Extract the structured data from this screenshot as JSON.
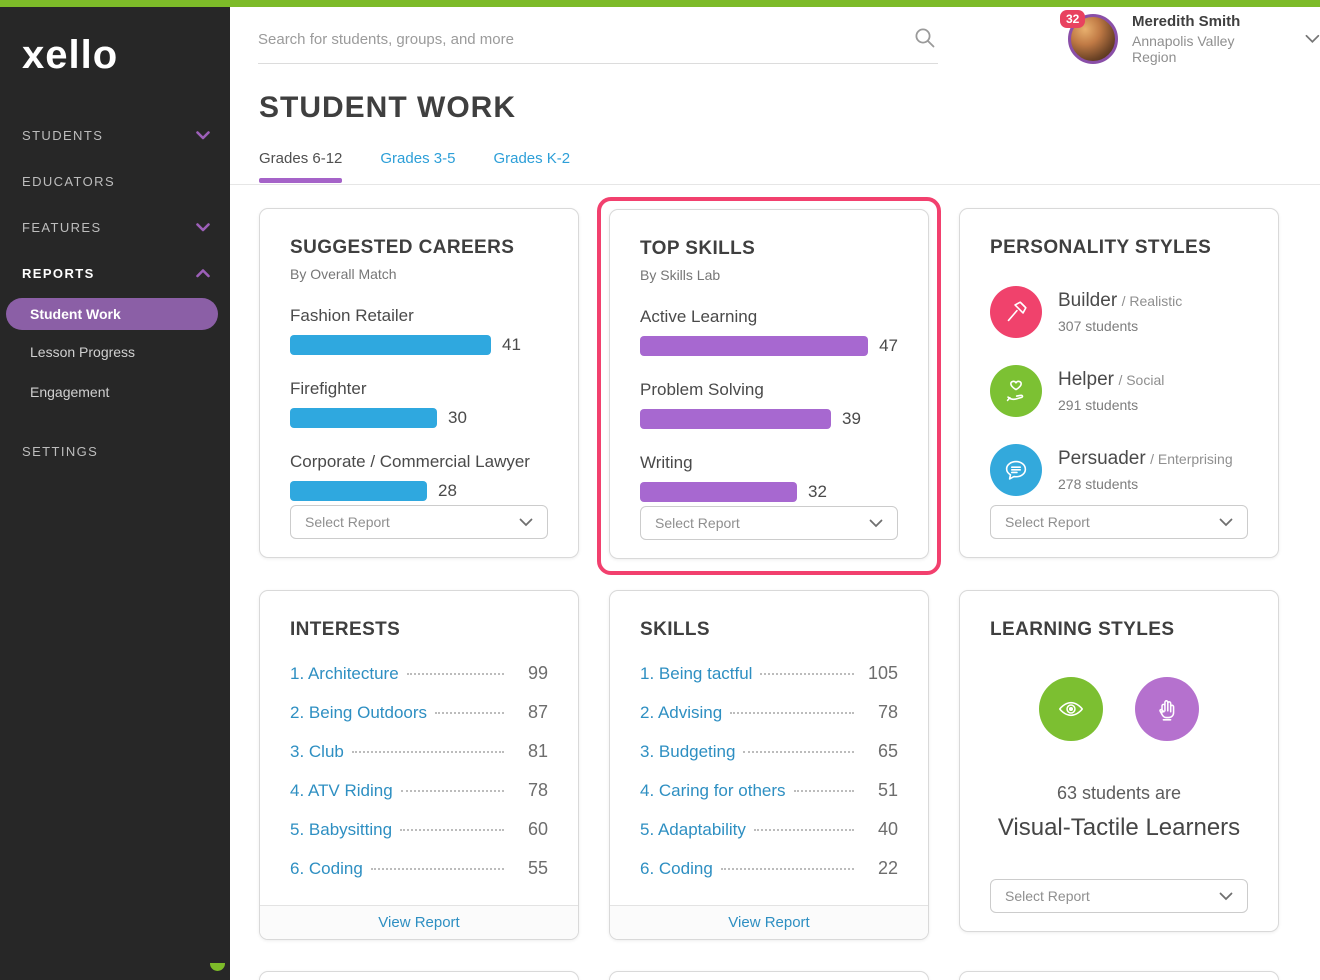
{
  "colors": {
    "accent_green": "#7DBB29",
    "sidebar_bg": "#272727",
    "nav_purple": "#9C5FB8",
    "active_pill": "#8B5FA6",
    "tab_underline": "#A563C8",
    "tab_link_blue": "#2D9FD8",
    "link_blue": "#2E8FC2",
    "bar_blue": "#2FA8DF",
    "bar_purple": "#A768D0",
    "highlight_pink": "#F2406E",
    "badge_red": "#E8425F",
    "builder_pink": "#F0426C",
    "helper_green": "#7CC133",
    "persuader_blue": "#33A9DC",
    "visual_green": "#7CBF31",
    "tactile_purple": "#B571CE"
  },
  "brand": {
    "logo_text": "xello"
  },
  "sidebar": {
    "students_label": "STUDENTS",
    "educators_label": "EDUCATORS",
    "features_label": "FEATURES",
    "reports_label": "REPORTS",
    "reports_items": [
      {
        "label": "Student Work",
        "active": true
      },
      {
        "label": "Lesson Progress"
      },
      {
        "label": "Engagement"
      }
    ],
    "settings_label": "SETTINGS"
  },
  "topbar": {
    "search_placeholder": "Search for students, groups, and more",
    "notification_count": "32",
    "user_name": "Meredith Smith",
    "user_region": "Annapolis Valley Region"
  },
  "page": {
    "title": "STUDENT WORK",
    "tabs": [
      {
        "label": "Grades 6-12",
        "active": true
      },
      {
        "label": "Grades 3-5"
      },
      {
        "label": "Grades K-2"
      }
    ]
  },
  "ui": {
    "select_report": "Select Report",
    "view_report": "View Report"
  },
  "cards": {
    "suggested_careers": {
      "title": "SUGGESTED CAREERS",
      "subtitle": "By Overall Match",
      "items": [
        {
          "label": "Fashion Retailer",
          "value": 41
        },
        {
          "label": "Firefighter",
          "value": 30
        },
        {
          "label": "Corporate / Commercial Lawyer",
          "value": 28
        }
      ]
    },
    "top_skills": {
      "title": "TOP SKILLS",
      "subtitle": "By Skills Lab",
      "items": [
        {
          "label": "Active Learning",
          "value": 47
        },
        {
          "label": "Problem Solving",
          "value": 39
        },
        {
          "label": "Writing",
          "value": 32
        }
      ]
    },
    "personality_styles": {
      "title": "PERSONALITY STYLES",
      "items": [
        {
          "name": "Builder",
          "type": "/ Realistic",
          "students": "307 students",
          "icon": "hammer-icon"
        },
        {
          "name": "Helper",
          "type": "/ Social",
          "students": "291 students",
          "icon": "heart-hand-icon"
        },
        {
          "name": "Persuader",
          "type": "/ Enterprising",
          "students": "278 students",
          "icon": "speech-bubble-icon"
        }
      ]
    },
    "interests": {
      "title": "INTERESTS",
      "items": [
        {
          "label": "1. Architecture",
          "value": 99
        },
        {
          "label": "2. Being Outdoors",
          "value": 87
        },
        {
          "label": "3. Club",
          "value": 81
        },
        {
          "label": "4. ATV Riding",
          "value": 78
        },
        {
          "label": "5. Babysitting",
          "value": 60
        },
        {
          "label": "6. Coding",
          "value": 55
        }
      ]
    },
    "skills": {
      "title": "SKILLS",
      "items": [
        {
          "label": "1. Being tactful",
          "value": 105
        },
        {
          "label": "2. Advising",
          "value": 78
        },
        {
          "label": "3. Budgeting",
          "value": 65
        },
        {
          "label": "4. Caring for others",
          "value": 51
        },
        {
          "label": "5. Adaptability",
          "value": 40
        },
        {
          "label": "6. Coding",
          "value": 22
        }
      ]
    },
    "learning_styles": {
      "title": "LEARNING STYLES",
      "line1": "63 students are",
      "line2": "Visual-Tactile Learners",
      "icons": [
        "eye-icon",
        "hand-icon"
      ]
    }
  }
}
